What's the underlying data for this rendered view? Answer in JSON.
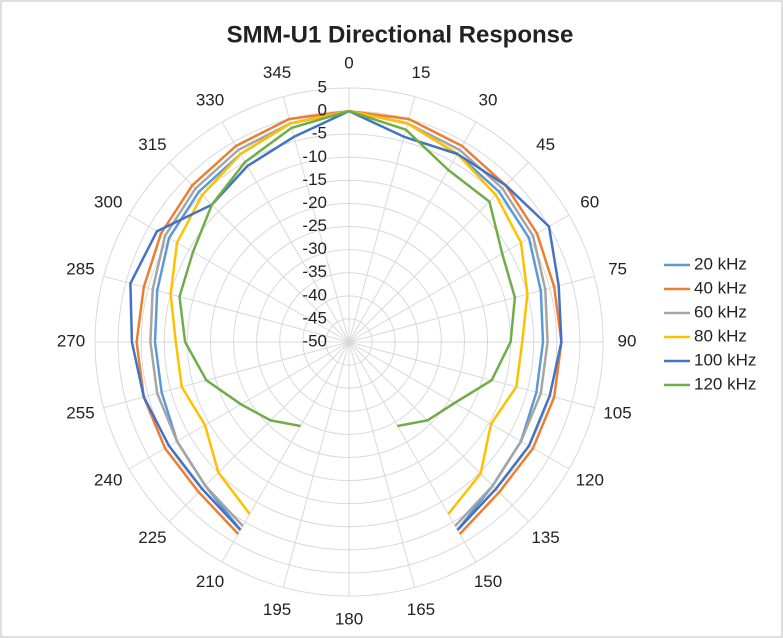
{
  "chart_data": {
    "type": "polar",
    "title": "SMM-U1 Directional Response",
    "categories": [
      "0",
      "15",
      "30",
      "45",
      "60",
      "75",
      "90",
      "105",
      "120",
      "135",
      "150",
      "165",
      "180",
      "195",
      "210",
      "225",
      "240",
      "255",
      "270",
      "285",
      "300",
      "315",
      "330",
      "345"
    ],
    "ylim": [
      -50,
      5
    ],
    "yticks": [
      -50,
      -45,
      -40,
      -35,
      -30,
      -25,
      -20,
      -15,
      -10,
      -5,
      0,
      5
    ],
    "grid": true,
    "series": [
      {
        "name": "20 kHz",
        "color": "#5b9bd5",
        "values": [
          0,
          -1,
          -3,
          -4,
          -5,
          -7,
          -8,
          -8,
          -7,
          -6,
          -3,
          null,
          null,
          null,
          -3,
          -6,
          -7,
          -8,
          -8,
          -7,
          -5,
          -4,
          -3,
          -1
        ]
      },
      {
        "name": "40 kHz",
        "color": "#ed7d31",
        "values": [
          0,
          0,
          -1,
          -2,
          -3,
          -4,
          -4,
          -4,
          -4,
          -4,
          -2,
          null,
          null,
          null,
          -2,
          -4,
          -4,
          -4,
          -4,
          -4,
          -3,
          -2,
          -1,
          0
        ]
      },
      {
        "name": "60 kHz",
        "color": "#a5a5a5",
        "values": [
          0,
          -1,
          -2,
          -3,
          -4,
          -6,
          -7,
          -7,
          -7,
          -6,
          -4,
          null,
          null,
          null,
          -4,
          -6,
          -7,
          -7,
          -7,
          -6,
          -4,
          -3,
          -2,
          -1
        ]
      },
      {
        "name": "80 kHz",
        "color": "#ffc000",
        "values": [
          0,
          -1,
          -3,
          -5,
          -7,
          -10,
          -12.5,
          -12.5,
          -14.5,
          -9.7,
          -7,
          null,
          null,
          null,
          -7,
          -10,
          -14,
          -12.5,
          -12.5,
          -10,
          -7,
          -5,
          -3,
          -1
        ]
      },
      {
        "name": "100 kHz",
        "color": "#4472c4",
        "values": [
          0,
          -4,
          -3,
          -2,
          0,
          -3,
          -4,
          -5,
          -5,
          -5,
          -3,
          null,
          null,
          null,
          -3,
          -5,
          -5,
          -4,
          -3,
          -1,
          -2,
          -8,
          -6,
          -4
        ]
      },
      {
        "name": "120 kHz",
        "color": "#70ad47",
        "values": [
          0,
          -2.4,
          -7,
          -7,
          -11.7,
          -12.8,
          -15,
          -18,
          -23.6,
          -26,
          -29,
          null,
          null,
          null,
          -29,
          -26,
          -23,
          -18,
          -14.5,
          -12,
          -11,
          -8,
          -5,
          -2
        ]
      }
    ]
  }
}
